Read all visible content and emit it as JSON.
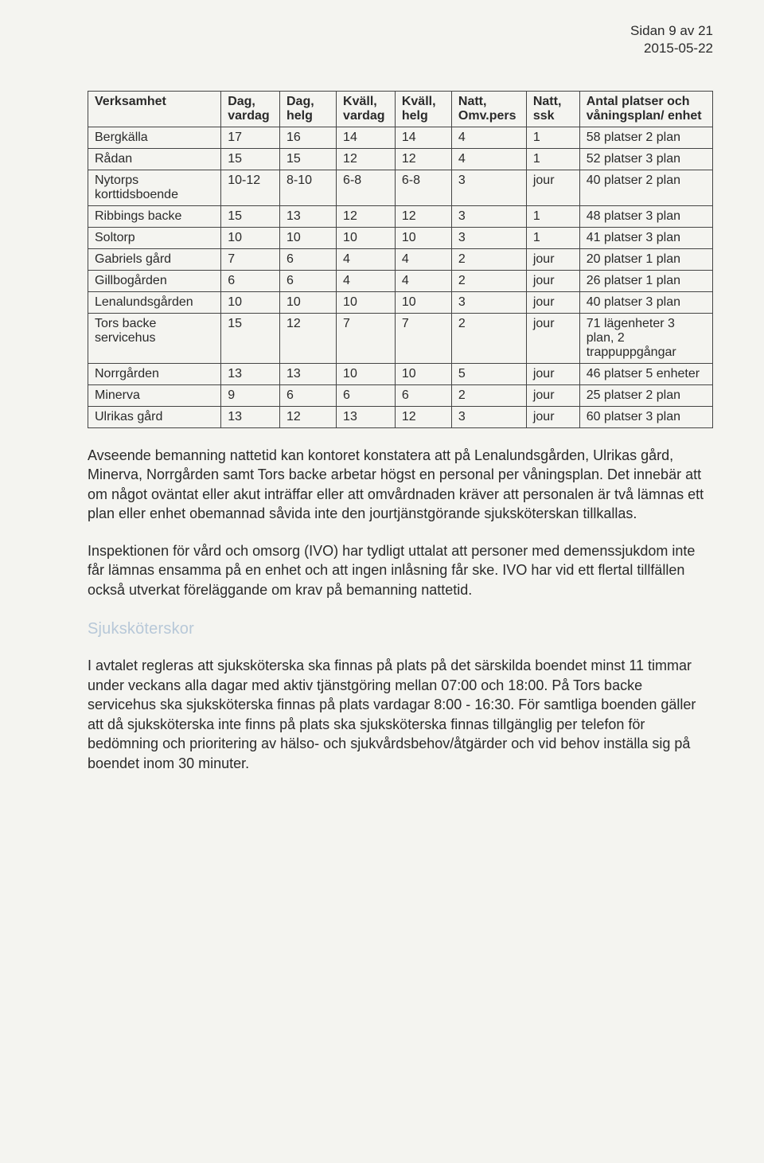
{
  "meta": {
    "pageinfo": "Sidan 9 av 21",
    "date": "2015-05-22"
  },
  "table": {
    "headers": {
      "h0": "Verksamhet",
      "h1": "Dag, vardag",
      "h2": "Dag, helg",
      "h3": "Kväll, vardag",
      "h4": "Kväll, helg",
      "h5": "Natt, Omv.pers",
      "h6": "Natt, ssk",
      "h7": "Antal platser och våningsplan/ enhet"
    },
    "rows": [
      {
        "c0": "Bergkälla",
        "c1": "17",
        "c2": "16",
        "c3": "14",
        "c4": "14",
        "c5": "4",
        "c6": "1",
        "c7": "58 platser 2 plan"
      },
      {
        "c0": "Rådan",
        "c1": "15",
        "c2": "15",
        "c3": "12",
        "c4": "12",
        "c5": "4",
        "c6": "1",
        "c7": "52 platser 3 plan"
      },
      {
        "c0": "Nytorps korttidsboende",
        "c1": "10-12",
        "c2": "8-10",
        "c3": "6-8",
        "c4": "6-8",
        "c5": "3",
        "c6": "jour",
        "c7": "40 platser 2 plan"
      },
      {
        "c0": "Ribbings backe",
        "c1": "15",
        "c2": "13",
        "c3": "12",
        "c4": "12",
        "c5": "3",
        "c6": "1",
        "c7": "48 platser 3 plan"
      },
      {
        "c0": "Soltorp",
        "c1": "10",
        "c2": "10",
        "c3": "10",
        "c4": "10",
        "c5": "3",
        "c6": "1",
        "c7": "41 platser 3 plan"
      },
      {
        "c0": "Gabriels gård",
        "c1": "7",
        "c2": "6",
        "c3": "4",
        "c4": "4",
        "c5": "2",
        "c6": "jour",
        "c7": "20 platser 1 plan"
      },
      {
        "c0": "Gillbogården",
        "c1": "6",
        "c2": "6",
        "c3": "4",
        "c4": "4",
        "c5": "2",
        "c6": "jour",
        "c7": "26 platser 1 plan"
      },
      {
        "c0": "Lenalundsgården",
        "c1": "10",
        "c2": "10",
        "c3": "10",
        "c4": "10",
        "c5": "3",
        "c6": "jour",
        "c7": "40 platser 3 plan"
      },
      {
        "c0": "Tors backe servicehus",
        "c1": "15",
        "c2": "12",
        "c3": "7",
        "c4": "7",
        "c5": "2",
        "c6": "jour",
        "c7": "71 lägenheter 3 plan, 2 trappuppgångar"
      },
      {
        "c0": "Norrgården",
        "c1": "13",
        "c2": "13",
        "c3": "10",
        "c4": "10",
        "c5": "5",
        "c6": "jour",
        "c7": "46 platser 5 enheter"
      },
      {
        "c0": "Minerva",
        "c1": "9",
        "c2": "6",
        "c3": "6",
        "c4": "6",
        "c5": "2",
        "c6": "jour",
        "c7": "25 platser 2 plan"
      },
      {
        "c0": "Ulrikas gård",
        "c1": "13",
        "c2": "12",
        "c3": "13",
        "c4": "12",
        "c5": "3",
        "c6": "jour",
        "c7": "60 platser 3 plan"
      }
    ]
  },
  "paragraphs": {
    "p1": "Avseende bemanning nattetid kan kontoret konstatera att på Lenalundsgården, Ulrikas gård, Minerva, Norrgården samt Tors backe arbetar högst en personal per våningsplan. Det innebär att om något oväntat eller akut inträffar eller att omvårdnaden kräver att personalen är två lämnas ett plan eller enhet obemannad såvida inte den jourtjänstgörande sjuksköterskan tillkallas.",
    "p2": "Inspektionen för vård och omsorg (IVO) har tydligt uttalat att personer med demenssjukdom inte får lämnas ensamma på en enhet och att ingen inlåsning får ske. IVO har vid ett flertal tillfällen också utverkat föreläggande om krav på bemanning nattetid.",
    "faintHeading": "Sjuksköterskor",
    "p3": "I avtalet regleras att sjuksköterska ska finnas på plats på det särskilda boendet minst 11 timmar under veckans alla dagar med aktiv tjänstgöring mellan 07:00 och 18:00. På Tors backe servicehus ska sjuksköterska finnas på plats vardagar 8:00 - 16:30. För samtliga boenden gäller att då sjuksköterska inte finns på plats ska sjuksköterska finnas tillgänglig per telefon för bedömning och prioritering av hälso- och sjukvårdsbehov/åtgärder och vid behov inställa sig på boendet inom 30 minuter."
  }
}
